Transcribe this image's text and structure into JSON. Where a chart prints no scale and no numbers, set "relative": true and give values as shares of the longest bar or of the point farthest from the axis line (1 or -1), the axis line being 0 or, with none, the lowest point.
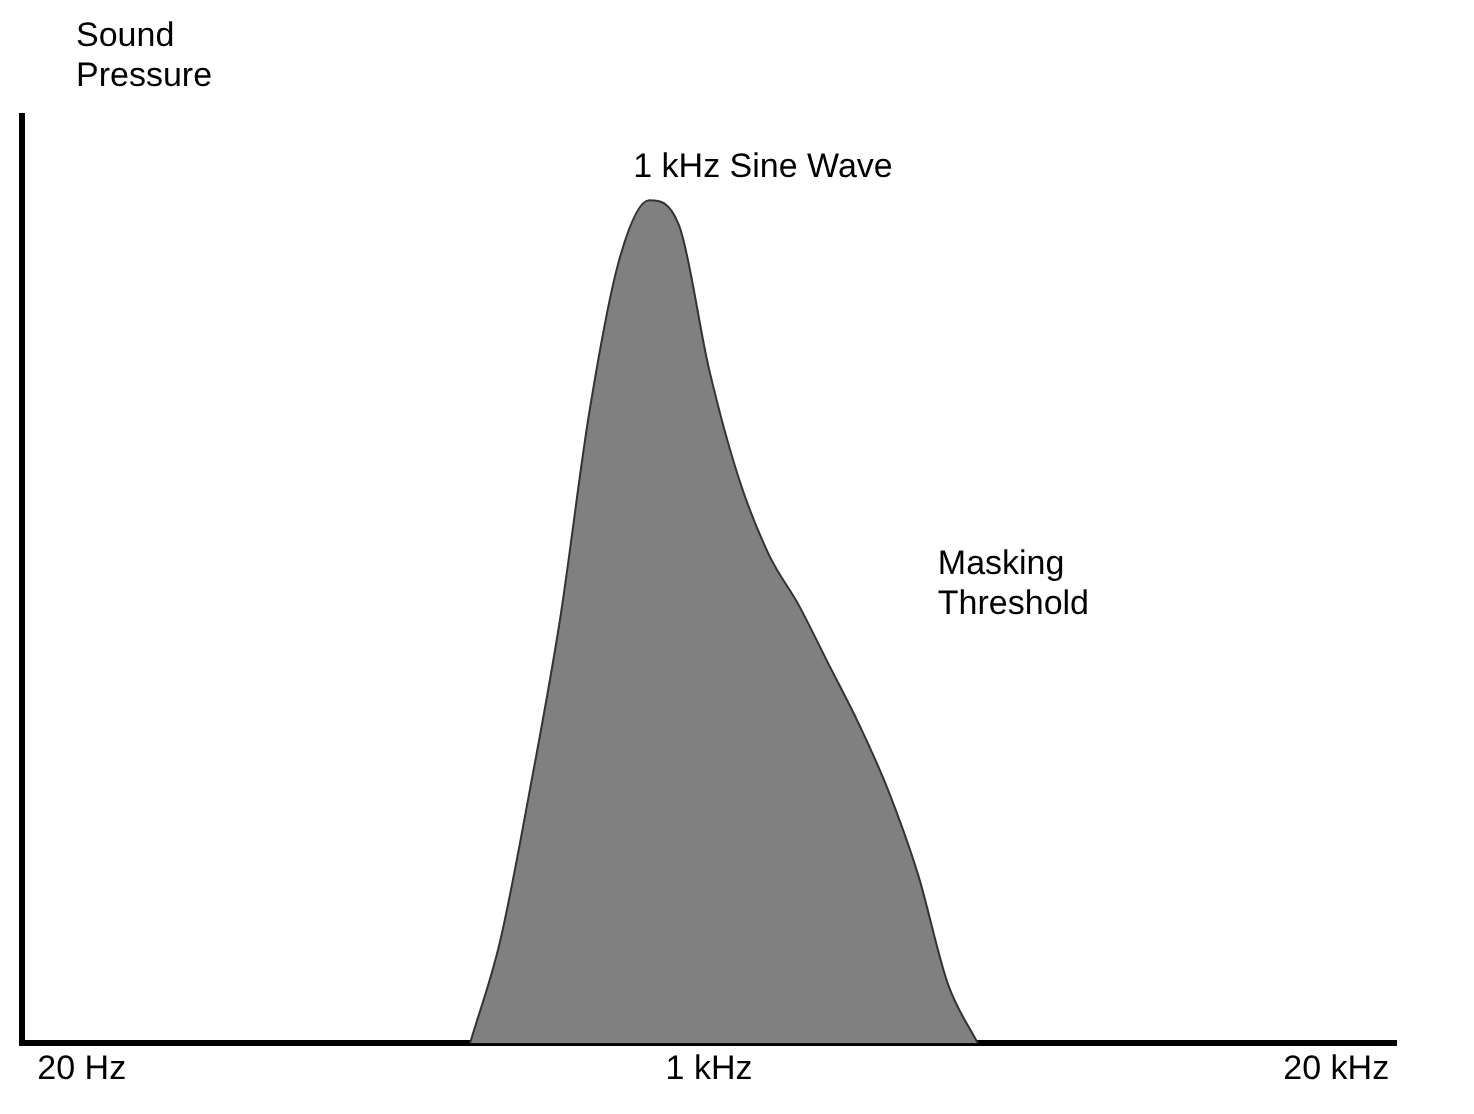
{
  "chart_data": {
    "type": "area",
    "ylabel": "Sound Pressure",
    "relative": true,
    "categories": [
      null,
      null,
      "20 Hz",
      null,
      null,
      null,
      null,
      null,
      null,
      null,
      null,
      null,
      null,
      null,
      null,
      null,
      null,
      null,
      null,
      null,
      null,
      null,
      null,
      "1 kHz",
      null,
      null,
      null,
      null,
      null,
      null,
      null,
      null,
      null,
      null,
      null,
      null,
      null,
      null,
      null,
      null,
      null,
      null,
      null,
      null,
      "20 kHz",
      null,
      null
    ],
    "series": [
      {
        "color": "#808080",
        "values": [
          null,
          null,
          null,
          null,
          null,
          null,
          null,
          null,
          null,
          null,
          null,
          null,
          null,
          null,
          null,
          0,
          0.12,
          0.3,
          0.5,
          0.75,
          0.93,
          1,
          0.97,
          0.8,
          0.67,
          0.58,
          0.52,
          0.45,
          0.38,
          0.3,
          0.2,
          0.07,
          0,
          null,
          null,
          null,
          null,
          null,
          null,
          null,
          null,
          null,
          null,
          null,
          null,
          null,
          null
        ]
      }
    ],
    "annotations": [
      "1 kHz Sine Wave",
      "Masking\nThreshold"
    ],
    "grid": false,
    "legend": false
  }
}
